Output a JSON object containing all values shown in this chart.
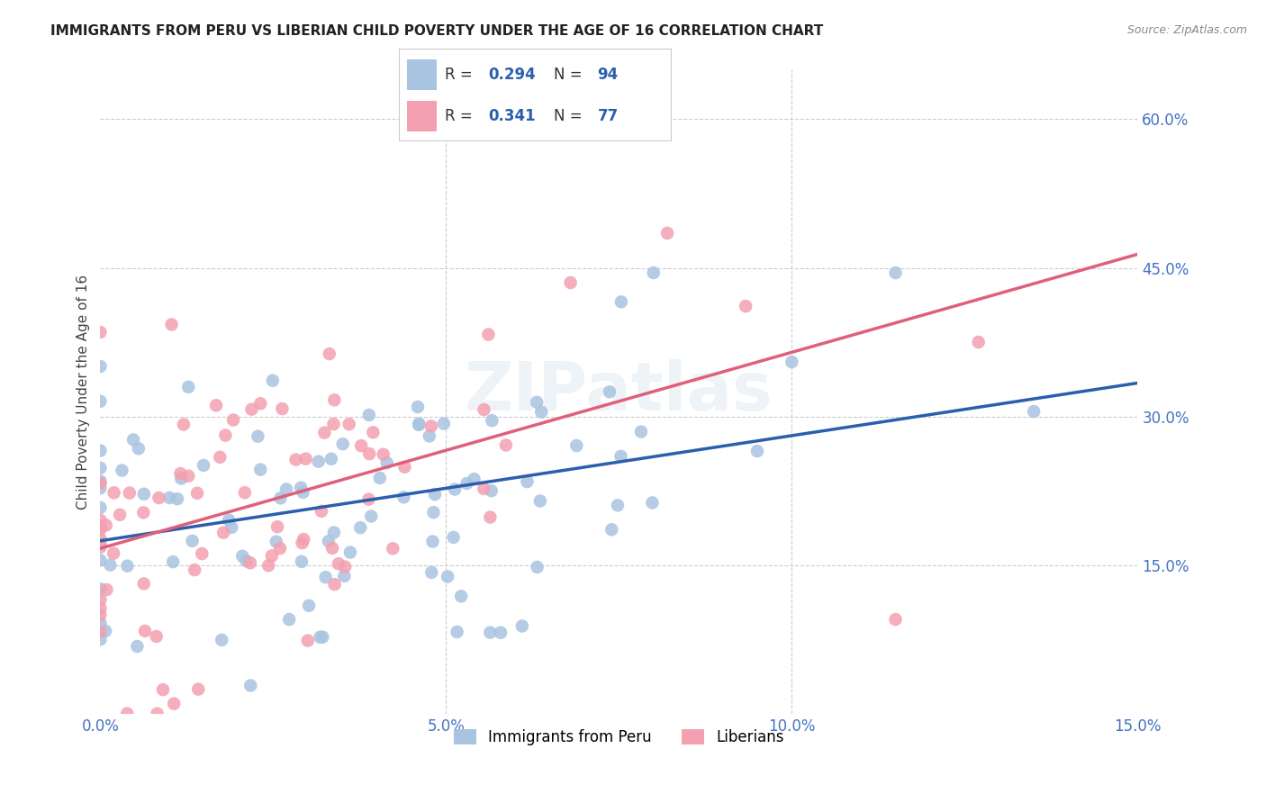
{
  "title": "IMMIGRANTS FROM PERU VS LIBERIAN CHILD POVERTY UNDER THE AGE OF 16 CORRELATION CHART",
  "source": "Source: ZipAtlas.com",
  "ylabel": "Child Poverty Under the Age of 16",
  "ytick_values": [
    0.0,
    0.15,
    0.3,
    0.45,
    0.6
  ],
  "xtick_values": [
    0.0,
    0.05,
    0.1,
    0.15
  ],
  "xlim": [
    0,
    0.15
  ],
  "ylim": [
    0,
    0.65
  ],
  "legend_blue_label": "Immigrants from Peru",
  "legend_pink_label": "Liberians",
  "r_blue": 0.294,
  "n_blue": 94,
  "r_pink": 0.341,
  "n_pink": 77,
  "blue_color": "#a8c4e0",
  "pink_color": "#f4a0b0",
  "line_blue": "#2b5fad",
  "line_pink": "#e0607a",
  "title_color": "#222222",
  "axis_label_color": "#4472c4",
  "watermark": "ZIPatlas",
  "seed": 42
}
